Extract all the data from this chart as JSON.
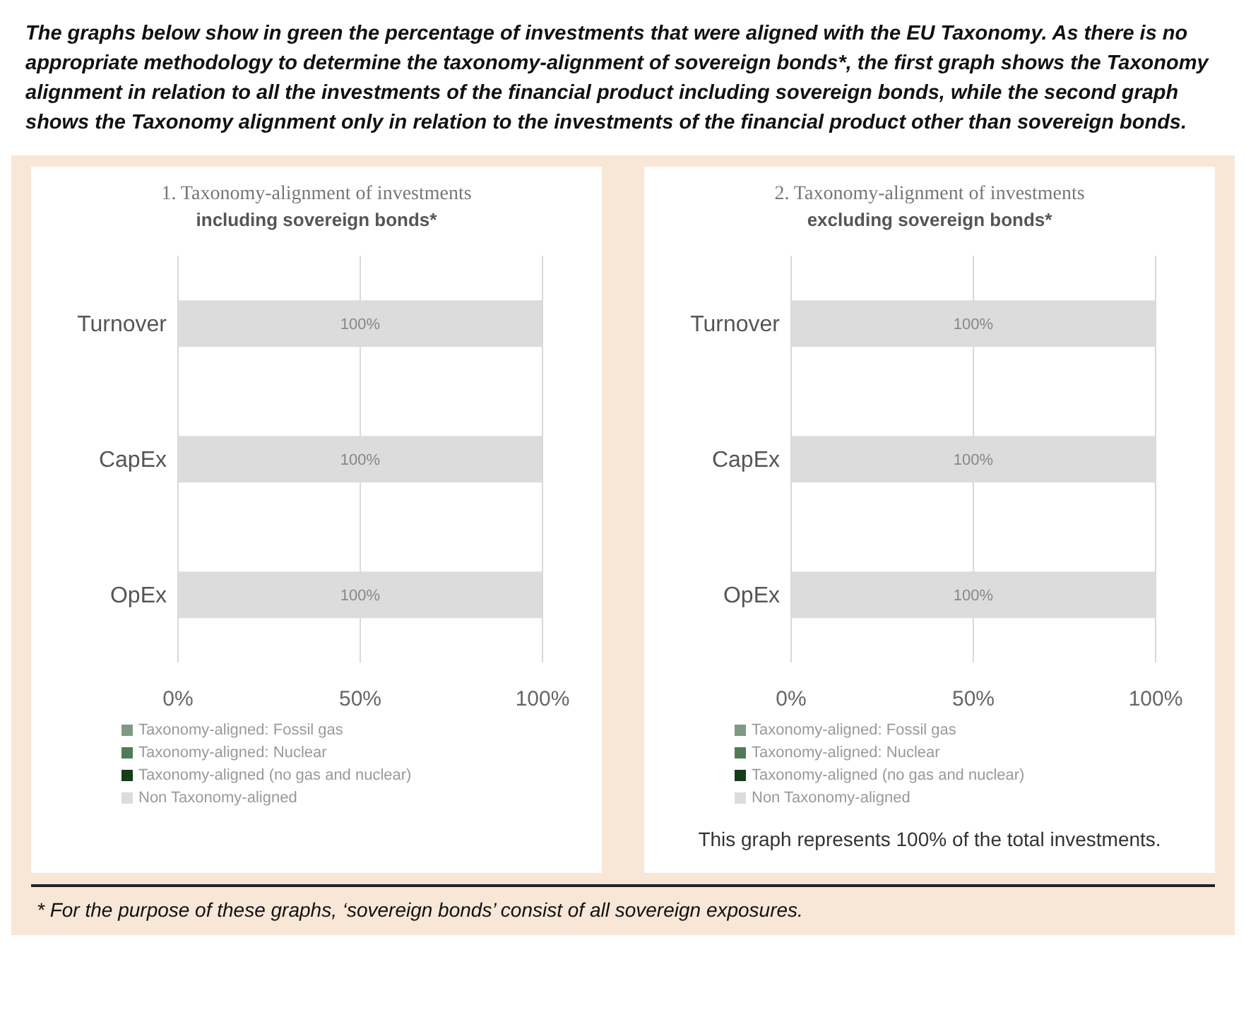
{
  "chart_data": [
    {
      "type": "bar",
      "orientation": "horizontal",
      "stacked": true,
      "title": "1. Taxonomy-alignment of investments",
      "subtitle": "including sovereign bonds*",
      "categories": [
        "Turnover",
        "CapEx",
        "OpEx"
      ],
      "series": [
        {
          "name": "Taxonomy-aligned: Fossil gas",
          "color": "#7e9a80",
          "values": [
            0,
            0,
            0
          ]
        },
        {
          "name": "Taxonomy-aligned: Nuclear",
          "color": "#4e7d55",
          "values": [
            0,
            0,
            0
          ]
        },
        {
          "name": "Taxonomy-aligned (no gas and nuclear)",
          "color": "#163d19",
          "values": [
            0,
            0,
            0
          ]
        },
        {
          "name": "Non Taxonomy-aligned",
          "color": "#dcdcdc",
          "values": [
            100,
            100,
            100
          ],
          "value_labels": [
            "100%",
            "100%",
            "100%"
          ]
        }
      ],
      "xlim": [
        0,
        100
      ],
      "xticks": [
        {
          "value": 0,
          "label": "0%"
        },
        {
          "value": 50,
          "label": "50%"
        },
        {
          "value": 100,
          "label": "100%"
        }
      ],
      "grid": "x",
      "legend": "bottom",
      "annotations": [
        "The graphs below show in green the percentage of investments that were aligned with the EU Taxonomy. As there is no appropriate methodology to determine the taxonomy-alignment of sovereign bonds*, the first graph shows the Taxonomy alignment in relation to all the investments of the financial product including sovereign bonds, while the second graph shows the Taxonomy alignment only in relation to the investments of the financial product other than sovereign bonds.",
        "*   For the purpose of these graphs, ‘sovereign bonds’ consist of all sovereign exposures."
      ]
    },
    {
      "type": "bar",
      "orientation": "horizontal",
      "stacked": true,
      "title": "2. Taxonomy-alignment of investments",
      "subtitle": "excluding sovereign bonds*",
      "categories": [
        "Turnover",
        "CapEx",
        "OpEx"
      ],
      "series": [
        {
          "name": "Taxonomy-aligned: Fossil gas",
          "color": "#7e9a80",
          "values": [
            0,
            0,
            0
          ]
        },
        {
          "name": "Taxonomy-aligned: Nuclear",
          "color": "#4e7d55",
          "values": [
            0,
            0,
            0
          ]
        },
        {
          "name": "Taxonomy-aligned (no gas and nuclear)",
          "color": "#163d19",
          "values": [
            0,
            0,
            0
          ]
        },
        {
          "name": "Non Taxonomy-aligned",
          "color": "#dcdcdc",
          "values": [
            100,
            100,
            100
          ],
          "value_labels": [
            "100%",
            "100%",
            "100%"
          ]
        }
      ],
      "xlim": [
        0,
        100
      ],
      "xticks": [
        {
          "value": 0,
          "label": "0%"
        },
        {
          "value": 50,
          "label": "50%"
        },
        {
          "value": 100,
          "label": "100%"
        }
      ],
      "grid": "x",
      "legend": "bottom",
      "annotations": [
        "This graph represents 100% of the total investments."
      ]
    }
  ]
}
